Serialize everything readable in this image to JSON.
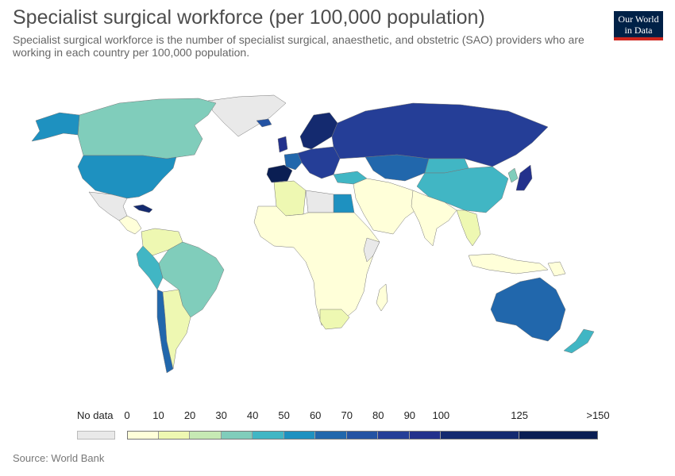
{
  "header": {
    "title": "Specialist surgical workforce (per 100,000 population)",
    "subtitle": "Specialist surgical workforce is the number of specialist surgical, anaesthetic, and obstetric (SAO) providers who are working in each country per 100,000 population."
  },
  "logo": {
    "line1": "Our World",
    "line2": "in Data",
    "bg": "#002147",
    "accent": "#ce261e"
  },
  "legend": {
    "no_data_label": "No data",
    "no_data_color": "#e9e9e9",
    "ticks": [
      "0",
      "10",
      "20",
      "30",
      "40",
      "50",
      "60",
      "70",
      "80",
      "90",
      "100",
      "125",
      ">150"
    ],
    "bins": [
      {
        "from": 0,
        "to": 10,
        "color": "#ffffd9"
      },
      {
        "from": 10,
        "to": 20,
        "color": "#eef8b2"
      },
      {
        "from": 20,
        "to": 30,
        "color": "#c6e9b4"
      },
      {
        "from": 30,
        "to": 40,
        "color": "#80cdbb"
      },
      {
        "from": 40,
        "to": 50,
        "color": "#41b6c4"
      },
      {
        "from": 50,
        "to": 60,
        "color": "#1e91c0"
      },
      {
        "from": 60,
        "to": 70,
        "color": "#2167ac"
      },
      {
        "from": 70,
        "to": 80,
        "color": "#2453a3"
      },
      {
        "from": 80,
        "to": 90,
        "color": "#253e97"
      },
      {
        "from": 90,
        "to": 100,
        "color": "#23318c"
      },
      {
        "from": 100,
        "to": 125,
        "color": "#142a6f"
      },
      {
        "from": 125,
        "to": 150,
        "color": "#0a1e53"
      }
    ]
  },
  "source": "Source: World Bank",
  "map_regions": [
    {
      "name": "Greenland",
      "bin": "nodata"
    },
    {
      "name": "Canada",
      "bin": 3
    },
    {
      "name": "Alaska",
      "bin": 5
    },
    {
      "name": "United States",
      "bin": 5
    },
    {
      "name": "Mexico",
      "bin": "nodata"
    },
    {
      "name": "Central America",
      "bin": 0
    },
    {
      "name": "Cuba",
      "bin": 10
    },
    {
      "name": "Venezuela/Colombia",
      "bin": 1
    },
    {
      "name": "Brazil",
      "bin": 3
    },
    {
      "name": "Peru/Ecuador",
      "bin": 4
    },
    {
      "name": "Chile",
      "bin": 6
    },
    {
      "name": "Argentina",
      "bin": 1
    },
    {
      "name": "Iceland",
      "bin": 7
    },
    {
      "name": "Spain/Portugal",
      "bin": 11
    },
    {
      "name": "France",
      "bin": 6
    },
    {
      "name": "United Kingdom",
      "bin": 9
    },
    {
      "name": "Scandinavia",
      "bin": 10
    },
    {
      "name": "Central Europe",
      "bin": 8
    },
    {
      "name": "Russia",
      "bin": 8
    },
    {
      "name": "Turkey",
      "bin": 4
    },
    {
      "name": "Kazakhstan/Central Asia",
      "bin": 6
    },
    {
      "name": "China",
      "bin": 4
    },
    {
      "name": "Mongolia",
      "bin": 4
    },
    {
      "name": "Japan",
      "bin": 3
    },
    {
      "name": "Korea",
      "bin": 9
    },
    {
      "name": "Middle East",
      "bin": 0
    },
    {
      "name": "Egypt",
      "bin": 5
    },
    {
      "name": "Algeria",
      "bin": 1
    },
    {
      "name": "Libya",
      "bin": "nodata"
    },
    {
      "name": "Africa",
      "bin": 0
    },
    {
      "name": "Somalia",
      "bin": "nodata"
    },
    {
      "name": "South Africa",
      "bin": 1
    },
    {
      "name": "Madagascar",
      "bin": 0
    },
    {
      "name": "India",
      "bin": 0
    },
    {
      "name": "Southeast Asia",
      "bin": 1
    },
    {
      "name": "Indonesia",
      "bin": 0
    },
    {
      "name": "Australia",
      "bin": 6
    },
    {
      "name": "New Zealand",
      "bin": 4
    },
    {
      "name": "Papua New Guinea",
      "bin": 0
    }
  ]
}
